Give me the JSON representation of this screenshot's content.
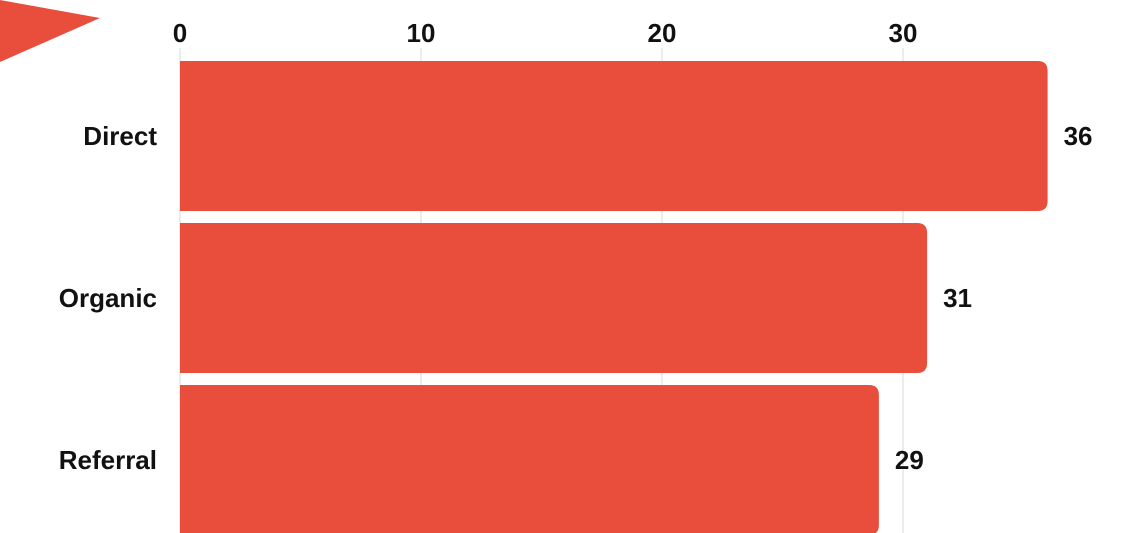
{
  "chart_data": {
    "type": "bar",
    "orientation": "horizontal",
    "title": "",
    "xlabel": "",
    "ylabel": "",
    "categories": [
      "Direct",
      "Organic",
      "Referral"
    ],
    "values": [
      36,
      31,
      29
    ],
    "xlim": [
      0,
      36
    ],
    "xticks": [
      0,
      10,
      20,
      30
    ],
    "xtick_labels": [
      "0",
      "10",
      "20",
      "30"
    ],
    "value_labels": [
      "36",
      "31",
      "29"
    ],
    "grid": "vertical",
    "axis_position": "top",
    "legend": "none"
  },
  "colors": {
    "bar": "#E84E3B",
    "accent_triangle": "#E84E3B",
    "text": "#111111",
    "grid": "#D9D9D9"
  },
  "decoration": {
    "corner_shape": "triangle-pointer-icon"
  }
}
